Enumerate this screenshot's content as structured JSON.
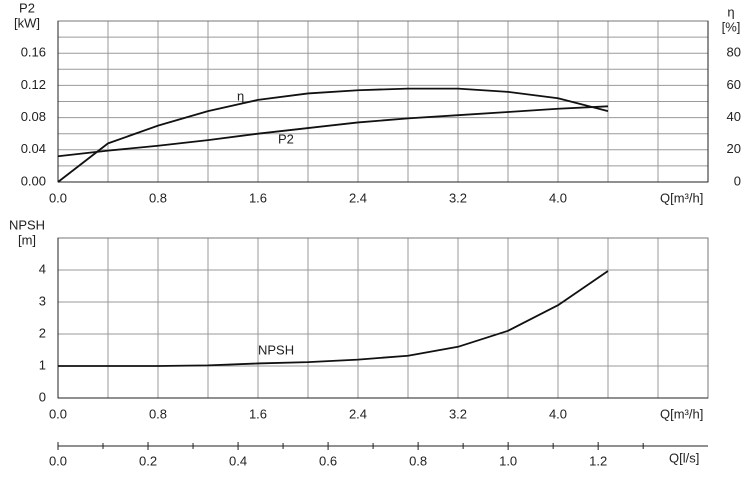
{
  "chart_data": [
    {
      "type": "line",
      "x": [
        0,
        0.4,
        0.8,
        1.2,
        1.6,
        2.0,
        2.4,
        2.8,
        3.2,
        3.6,
        4.0,
        4.4
      ],
      "series": [
        {
          "name": "P2",
          "color": "#111111",
          "values": [
            0.032,
            0.039,
            0.045,
            0.052,
            0.06,
            0.067,
            0.074,
            0.079,
            0.083,
            0.087,
            0.091,
            0.094
          ]
        },
        {
          "name": "η",
          "color": "#111111",
          "axis": "y2",
          "values": [
            0,
            24,
            35,
            44,
            51,
            55,
            57,
            58,
            58,
            56,
            52,
            44
          ]
        }
      ],
      "xlim": [
        0,
        5.2
      ],
      "xticks": [
        {
          "value": 0,
          "label": "0.0"
        },
        {
          "value": 0.8,
          "label": "0.8"
        },
        {
          "value": 1.6,
          "label": "1.6"
        },
        {
          "value": 2.4,
          "label": "2.4"
        },
        {
          "value": 3.2,
          "label": "3.2"
        },
        {
          "value": 4.0,
          "label": "4.0"
        }
      ],
      "xgrid": [
        0.4,
        1.2,
        2.0,
        2.8,
        3.6,
        4.4,
        4.8
      ],
      "xlabel": "Q[m³/h]",
      "ylim": [
        0,
        0.2
      ],
      "yticks": [
        {
          "value": 0,
          "label": "0.00"
        },
        {
          "value": 0.04,
          "label": "0.04"
        },
        {
          "value": 0.08,
          "label": "0.08"
        },
        {
          "value": 0.12,
          "label": "0.12"
        },
        {
          "value": 0.16,
          "label": "0.16"
        }
      ],
      "ygrid": [
        0.02,
        0.06,
        0.1,
        0.14,
        0.18
      ],
      "ylabel": [
        "P2",
        "[kW]"
      ],
      "y2lim": [
        0,
        100
      ],
      "y2ticks": [
        0,
        20,
        40,
        60,
        80
      ],
      "y2label": [
        "η",
        "[%]"
      ],
      "grid": true
    },
    {
      "type": "line",
      "x": [
        0,
        0.4,
        0.8,
        1.2,
        1.6,
        2.0,
        2.4,
        2.8,
        3.2,
        3.6,
        4.0,
        4.4
      ],
      "series": [
        {
          "name": "NPSH",
          "color": "#111111",
          "values": [
            1.0,
            1.0,
            1.0,
            1.02,
            1.08,
            1.12,
            1.2,
            1.32,
            1.6,
            2.1,
            2.9,
            3.97
          ]
        }
      ],
      "xlim": [
        0,
        5.2
      ],
      "xticks": [
        {
          "value": 0,
          "label": "0.0"
        },
        {
          "value": 0.8,
          "label": "0.8"
        },
        {
          "value": 1.6,
          "label": "1.6"
        },
        {
          "value": 2.4,
          "label": "2.4"
        },
        {
          "value": 3.2,
          "label": "3.2"
        },
        {
          "value": 4.0,
          "label": "4.0"
        }
      ],
      "xgrid": [
        0.4,
        1.2,
        2.0,
        2.8,
        3.6,
        4.4,
        4.8
      ],
      "xlabel": "Q[m³/h]",
      "ylim": [
        0,
        5
      ],
      "yticks": [
        0,
        1,
        2,
        3,
        4
      ],
      "ygrid": [
        5
      ],
      "ylabel": [
        "NPSH",
        "[m]"
      ],
      "grid": true
    },
    {
      "type": "axis",
      "xlim": [
        0,
        1.444
      ],
      "xticks": [
        {
          "value": 0,
          "label": "0.0"
        },
        {
          "value": 0.2,
          "label": "0.2"
        },
        {
          "value": 0.4,
          "label": "0.4"
        },
        {
          "value": 0.6,
          "label": "0.6"
        },
        {
          "value": 0.8,
          "label": "0.8"
        },
        {
          "value": 1.0,
          "label": "1.0"
        },
        {
          "value": 1.2,
          "label": "1.2"
        }
      ],
      "xminor": [
        0.1,
        0.3,
        0.5,
        0.7,
        0.9,
        1.1,
        1.3
      ],
      "xlabel": "Q[l/s]"
    }
  ]
}
